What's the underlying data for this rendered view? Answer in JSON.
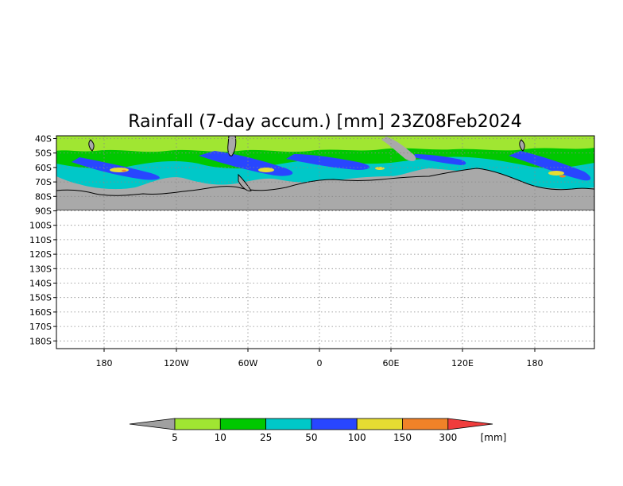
{
  "title": "Rainfall (7-day accum.) [mm] 23Z08Feb2024",
  "map": {
    "lat_labels": [
      "40S",
      "50S",
      "60S",
      "70S",
      "80S",
      "90S",
      "100S",
      "110S",
      "120S",
      "130S",
      "140S",
      "150S",
      "160S",
      "170S",
      "180S"
    ],
    "lon_labels": [
      "180",
      "120W",
      "60W",
      "0",
      "60E",
      "120E",
      "180"
    ],
    "grid": "dotted",
    "land_color": "#a9a9a9",
    "coastline_color": "#000000"
  },
  "colorbar": {
    "thresholds": [
      "5",
      "10",
      "25",
      "50",
      "100",
      "150",
      "300"
    ],
    "unit": "[mm]",
    "colors": [
      "#a0a0a0",
      "#a0e632",
      "#00c800",
      "#00c8c8",
      "#2846ff",
      "#e6dc32",
      "#f08228",
      "#f03c3c"
    ]
  }
}
